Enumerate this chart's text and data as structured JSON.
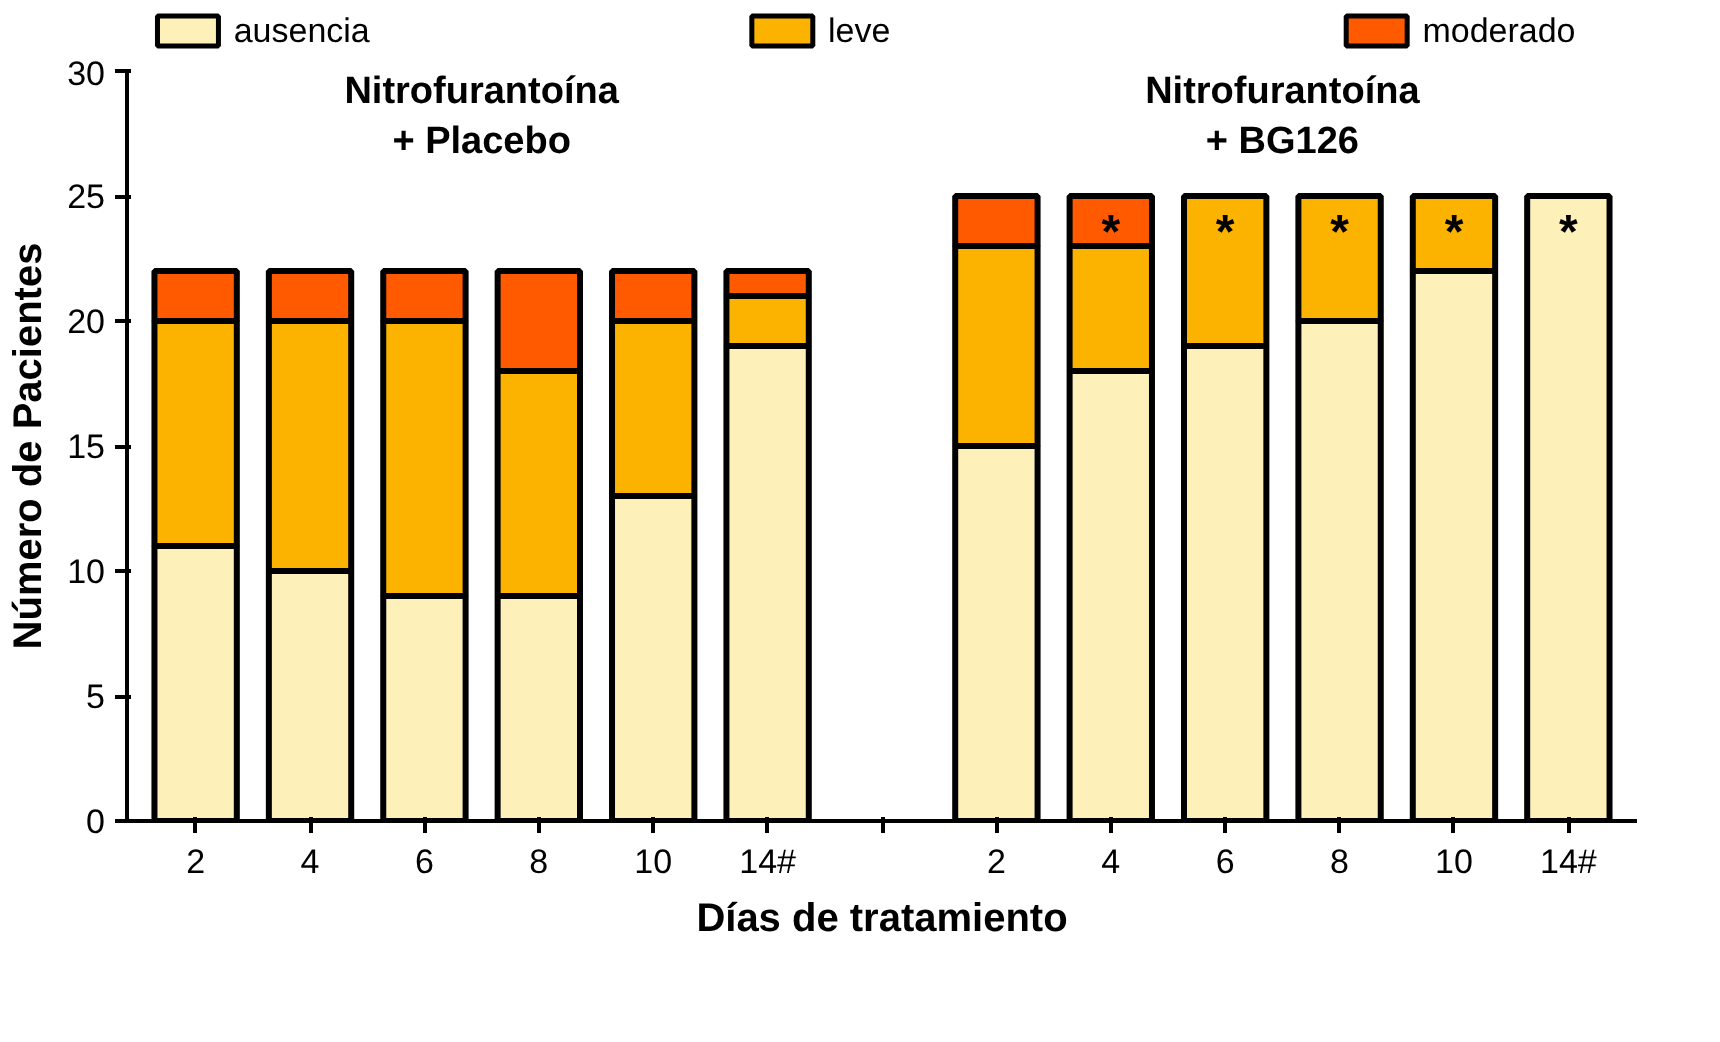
{
  "chart_data": {
    "type": "bar",
    "stacked": true,
    "xlabel": "Días de tratamiento",
    "ylabel": "Número de Pacientes",
    "categories": [
      "2",
      "4",
      "6",
      "8",
      "10",
      "14#",
      null,
      "2",
      "4",
      "6",
      "8",
      "10",
      "14#"
    ],
    "series": [
      {
        "name": "ausencia",
        "color": "#fdf0b8",
        "values": [
          11,
          10,
          9,
          9,
          13,
          19,
          null,
          15,
          18,
          19,
          20,
          22,
          25
        ]
      },
      {
        "name": "leve",
        "color": "#fbb300",
        "values": [
          9,
          10,
          11,
          9,
          7,
          2,
          null,
          8,
          5,
          6,
          5,
          3,
          0
        ]
      },
      {
        "name": "moderado",
        "color": "#ff5a00",
        "values": [
          2,
          2,
          2,
          4,
          2,
          1,
          null,
          2,
          2,
          0,
          0,
          0,
          0
        ]
      }
    ],
    "ylim": [
      0,
      30
    ],
    "yticks": [
      0,
      5,
      10,
      15,
      20,
      25,
      30
    ],
    "grid": false,
    "legend": "top",
    "annotations": [
      "Nitrofurantoína\n+ Placebo",
      "Nitrofurantoína\n+ BG126",
      "*",
      "*",
      "*",
      "*",
      "*"
    ]
  }
}
